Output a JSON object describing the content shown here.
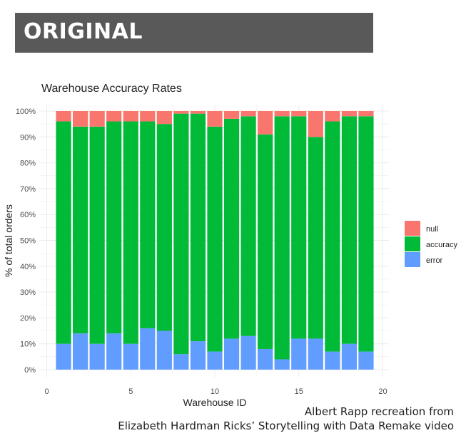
{
  "banner": {
    "label": "ORIGINAL"
  },
  "credit": {
    "line1": "Albert Rapp recreation from",
    "line2": "Elizabeth Hardman Ricks’ Storytelling with Data Remake video"
  },
  "colors": {
    "null": "#F8766D",
    "accuracy": "#00BA38",
    "error": "#619CFF",
    "grid": "#EBEBEB",
    "text": "#222222",
    "tick": "#4D4D4D"
  },
  "chart_data": {
    "type": "bar",
    "stacked": true,
    "title": "Warehouse Accuracy Rates",
    "xlabel": "Warehouse ID",
    "ylabel": "% of total orders",
    "xlim": [
      0,
      20
    ],
    "ylim": [
      0,
      100
    ],
    "x_ticks": [
      "0",
      "5",
      "10",
      "15",
      "20"
    ],
    "y_ticks": [
      "0%",
      "10%",
      "20%",
      "30%",
      "40%",
      "50%",
      "60%",
      "70%",
      "80%",
      "90%",
      "100%"
    ],
    "categories": [
      1,
      2,
      3,
      4,
      5,
      6,
      7,
      8,
      9,
      10,
      11,
      12,
      13,
      14,
      15,
      16,
      17,
      18,
      19
    ],
    "series": [
      {
        "name": "error",
        "values": [
          10,
          14,
          10,
          14,
          10,
          16,
          15,
          6,
          11,
          7,
          12,
          13,
          8,
          4,
          12,
          12,
          7,
          10,
          7
        ]
      },
      {
        "name": "accuracy",
        "values": [
          86,
          80,
          84,
          82,
          86,
          80,
          80,
          93,
          88,
          87,
          85,
          85,
          83,
          94,
          86,
          78,
          89,
          88,
          91
        ]
      },
      {
        "name": "null",
        "values": [
          4,
          6,
          6,
          4,
          4,
          4,
          5,
          1,
          1,
          6,
          3,
          2,
          9,
          2,
          2,
          10,
          4,
          2,
          2
        ]
      }
    ],
    "legend": {
      "position": "right",
      "order": [
        "null",
        "accuracy",
        "error"
      ]
    }
  }
}
